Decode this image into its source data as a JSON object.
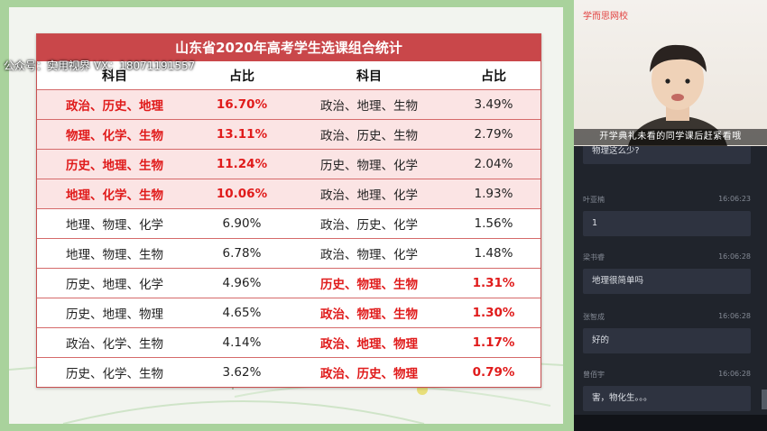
{
  "watermark": "公众号：实用视界  VX：18071191557",
  "table": {
    "title": "山东省2020年高考学生选课组合统计",
    "headers": [
      "科目",
      "占比",
      "科目",
      "占比"
    ],
    "rows": [
      {
        "combo1": "政治、历史、地理",
        "pct1": "16.70%",
        "hl1": true,
        "combo2": "政治、地理、生物",
        "pct2": "3.49%",
        "hl2": false
      },
      {
        "combo1": "物理、化学、生物",
        "pct1": "13.11%",
        "hl1": true,
        "combo2": "政治、历史、生物",
        "pct2": "2.79%",
        "hl2": false
      },
      {
        "combo1": "历史、地理、生物",
        "pct1": "11.24%",
        "hl1": true,
        "combo2": "历史、物理、化学",
        "pct2": "2.04%",
        "hl2": false
      },
      {
        "combo1": "地理、化学、生物",
        "pct1": "10.06%",
        "hl1": true,
        "combo2": "政治、地理、化学",
        "pct2": "1.93%",
        "hl2": false
      },
      {
        "combo1": "地理、物理、化学",
        "pct1": "6.90%",
        "hl1": false,
        "combo2": "政治、历史、化学",
        "pct2": "1.56%",
        "hl2": false
      },
      {
        "combo1": "地理、物理、生物",
        "pct1": "6.78%",
        "hl1": false,
        "combo2": "政治、物理、化学",
        "pct2": "1.48%",
        "hl2": false
      },
      {
        "combo1": "历史、地理、化学",
        "pct1": "4.96%",
        "hl1": false,
        "combo2": "历史、物理、生物",
        "pct2": "1.31%",
        "hl2": true
      },
      {
        "combo1": "历史、地理、物理",
        "pct1": "4.65%",
        "hl1": false,
        "combo2": "政治、物理、生物",
        "pct2": "1.30%",
        "hl2": true
      },
      {
        "combo1": "政治、化学、生物",
        "pct1": "4.14%",
        "hl1": false,
        "combo2": "政治、地理、物理",
        "pct2": "1.17%",
        "hl2": true
      },
      {
        "combo1": "历史、化学、生物",
        "pct1": "3.62%",
        "hl1": false,
        "combo2": "政治、历史、物理",
        "pct2": "0.79%",
        "hl2": true
      }
    ]
  },
  "video": {
    "brand": "学而思网校",
    "caption": "开学典礼未看的同学课后赶紧看哦"
  },
  "chat": {
    "partial_message": "物理这么少?",
    "messages": [
      {
        "name": "叶亚楠",
        "time": "16:06:23",
        "text": "1"
      },
      {
        "name": "梁书睿",
        "time": "16:06:28",
        "text": "地理很简单吗"
      },
      {
        "name": "张智成",
        "time": "16:06:28",
        "text": "好的"
      },
      {
        "name": "曾佰宇",
        "time": "16:06:28",
        "text": "害，物化生。。。"
      }
    ]
  },
  "colors": {
    "title_bar": "#c9474a",
    "highlight_text": "#e01b1b",
    "row_shade": "#fbe4e4",
    "slide_border": "#a9d29c",
    "panel_bg": "#20242c"
  }
}
